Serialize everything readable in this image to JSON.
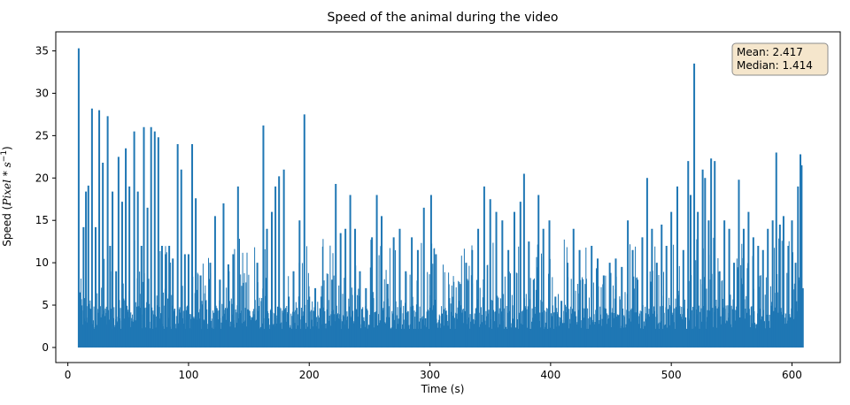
{
  "chart_data": {
    "type": "line",
    "title": "Speed of the animal during the video",
    "xlabel": "Time (s)",
    "ylabel_prefix": "Speed (",
    "ylabel_unit": "Pixel * s",
    "ylabel_exponent": "−1",
    "ylabel_suffix": ")",
    "xlim": [
      -10,
      640
    ],
    "ylim": [
      -1.78,
      37.25
    ],
    "xticks": [
      0,
      100,
      200,
      300,
      400,
      500,
      600
    ],
    "yticks": [
      0,
      5,
      10,
      15,
      20,
      25,
      30,
      35
    ],
    "grid": false,
    "color": "#1f77b4",
    "stats_box": {
      "mean_label": "Mean: 2.417",
      "median_label": "Median: 1.414",
      "placement": "top-right",
      "background": "#f5e6cc"
    },
    "x_range": [
      9,
      609
    ],
    "baseline": 0,
    "peaks": [
      {
        "x": 9,
        "y": 35.3
      },
      {
        "x": 10,
        "y": 6.5
      },
      {
        "x": 13,
        "y": 14.2
      },
      {
        "x": 15,
        "y": 18.4
      },
      {
        "x": 17,
        "y": 19.1
      },
      {
        "x": 20,
        "y": 28.2
      },
      {
        "x": 23,
        "y": 14.2
      },
      {
        "x": 26,
        "y": 28.0
      },
      {
        "x": 29,
        "y": 21.8
      },
      {
        "x": 33,
        "y": 27.3
      },
      {
        "x": 35,
        "y": 12.0
      },
      {
        "x": 37,
        "y": 18.4
      },
      {
        "x": 40,
        "y": 9.0
      },
      {
        "x": 42,
        "y": 22.5
      },
      {
        "x": 45,
        "y": 17.2
      },
      {
        "x": 48,
        "y": 23.5
      },
      {
        "x": 51,
        "y": 19.0
      },
      {
        "x": 55,
        "y": 25.5
      },
      {
        "x": 58,
        "y": 18.4
      },
      {
        "x": 61,
        "y": 12.0
      },
      {
        "x": 63,
        "y": 26.0
      },
      {
        "x": 66,
        "y": 16.5
      },
      {
        "x": 69,
        "y": 26.0
      },
      {
        "x": 72,
        "y": 25.5
      },
      {
        "x": 75,
        "y": 24.8
      },
      {
        "x": 78,
        "y": 12.0
      },
      {
        "x": 81,
        "y": 11.0
      },
      {
        "x": 84,
        "y": 12.0
      },
      {
        "x": 87,
        "y": 10.5
      },
      {
        "x": 91,
        "y": 24.0
      },
      {
        "x": 94,
        "y": 21.0
      },
      {
        "x": 97,
        "y": 11.0
      },
      {
        "x": 100,
        "y": 11.0
      },
      {
        "x": 103,
        "y": 24.0
      },
      {
        "x": 106,
        "y": 17.6
      },
      {
        "x": 110,
        "y": 8.5
      },
      {
        "x": 114,
        "y": 5.5
      },
      {
        "x": 118,
        "y": 10.0
      },
      {
        "x": 122,
        "y": 15.5
      },
      {
        "x": 126,
        "y": 8.0
      },
      {
        "x": 129,
        "y": 17.0
      },
      {
        "x": 133,
        "y": 9.8
      },
      {
        "x": 137,
        "y": 11.0
      },
      {
        "x": 141,
        "y": 19.0
      },
      {
        "x": 145,
        "y": 2.5
      },
      {
        "x": 149,
        "y": 4.5
      },
      {
        "x": 153,
        "y": 3.5
      },
      {
        "x": 157,
        "y": 10.0
      },
      {
        "x": 162,
        "y": 26.2
      },
      {
        "x": 165,
        "y": 14.0
      },
      {
        "x": 169,
        "y": 16.0
      },
      {
        "x": 172,
        "y": 19.0
      },
      {
        "x": 175,
        "y": 20.2
      },
      {
        "x": 179,
        "y": 21.0
      },
      {
        "x": 183,
        "y": 6.0
      },
      {
        "x": 187,
        "y": 9.0
      },
      {
        "x": 192,
        "y": 15.0
      },
      {
        "x": 196,
        "y": 27.5
      },
      {
        "x": 200,
        "y": 6.0
      },
      {
        "x": 205,
        "y": 7.0
      },
      {
        "x": 210,
        "y": 6.0
      },
      {
        "x": 215,
        "y": 4.5
      },
      {
        "x": 219,
        "y": 8.0
      },
      {
        "x": 222,
        "y": 19.3
      },
      {
        "x": 226,
        "y": 13.5
      },
      {
        "x": 230,
        "y": 14.0
      },
      {
        "x": 234,
        "y": 18.0
      },
      {
        "x": 238,
        "y": 14.0
      },
      {
        "x": 242,
        "y": 9.0
      },
      {
        "x": 247,
        "y": 7.0
      },
      {
        "x": 252,
        "y": 13.0
      },
      {
        "x": 256,
        "y": 18.0
      },
      {
        "x": 260,
        "y": 15.5
      },
      {
        "x": 265,
        "y": 7.5
      },
      {
        "x": 270,
        "y": 13.0
      },
      {
        "x": 275,
        "y": 14.0
      },
      {
        "x": 280,
        "y": 9.0
      },
      {
        "x": 285,
        "y": 13.0
      },
      {
        "x": 290,
        "y": 11.5
      },
      {
        "x": 295,
        "y": 16.5
      },
      {
        "x": 301,
        "y": 18.0
      },
      {
        "x": 305,
        "y": 11.0
      },
      {
        "x": 310,
        "y": 4.0
      },
      {
        "x": 315,
        "y": 2.5
      },
      {
        "x": 320,
        "y": 3.5
      },
      {
        "x": 325,
        "y": 7.5
      },
      {
        "x": 330,
        "y": 10.0
      },
      {
        "x": 335,
        "y": 11.5
      },
      {
        "x": 340,
        "y": 14.0
      },
      {
        "x": 345,
        "y": 19.0
      },
      {
        "x": 350,
        "y": 17.5
      },
      {
        "x": 355,
        "y": 16.0
      },
      {
        "x": 360,
        "y": 15.0
      },
      {
        "x": 365,
        "y": 11.5
      },
      {
        "x": 370,
        "y": 16.0
      },
      {
        "x": 375,
        "y": 17.2
      },
      {
        "x": 378,
        "y": 20.5
      },
      {
        "x": 382,
        "y": 12.5
      },
      {
        "x": 386,
        "y": 8.0
      },
      {
        "x": 390,
        "y": 18.0
      },
      {
        "x": 394,
        "y": 14.0
      },
      {
        "x": 399,
        "y": 15.0
      },
      {
        "x": 404,
        "y": 6.0
      },
      {
        "x": 409,
        "y": 5.5
      },
      {
        "x": 414,
        "y": 10.0
      },
      {
        "x": 419,
        "y": 14.0
      },
      {
        "x": 424,
        "y": 11.5
      },
      {
        "x": 429,
        "y": 7.5
      },
      {
        "x": 434,
        "y": 12.0
      },
      {
        "x": 439,
        "y": 10.5
      },
      {
        "x": 444,
        "y": 8.5
      },
      {
        "x": 449,
        "y": 10.0
      },
      {
        "x": 454,
        "y": 10.5
      },
      {
        "x": 459,
        "y": 9.5
      },
      {
        "x": 464,
        "y": 15.0
      },
      {
        "x": 468,
        "y": 11.5
      },
      {
        "x": 472,
        "y": 8.0
      },
      {
        "x": 476,
        "y": 13.0
      },
      {
        "x": 480,
        "y": 20.0
      },
      {
        "x": 484,
        "y": 14.0
      },
      {
        "x": 488,
        "y": 10.0
      },
      {
        "x": 492,
        "y": 14.5
      },
      {
        "x": 496,
        "y": 12.0
      },
      {
        "x": 500,
        "y": 16.0
      },
      {
        "x": 505,
        "y": 19.0
      },
      {
        "x": 510,
        "y": 11.5
      },
      {
        "x": 514,
        "y": 22.0
      },
      {
        "x": 516,
        "y": 18.0
      },
      {
        "x": 519,
        "y": 33.5
      },
      {
        "x": 522,
        "y": 16.0
      },
      {
        "x": 526,
        "y": 21.0
      },
      {
        "x": 528,
        "y": 20.0
      },
      {
        "x": 531,
        "y": 15.0
      },
      {
        "x": 533,
        "y": 22.3
      },
      {
        "x": 536,
        "y": 22.0
      },
      {
        "x": 540,
        "y": 9.0
      },
      {
        "x": 544,
        "y": 15.0
      },
      {
        "x": 548,
        "y": 14.0
      },
      {
        "x": 552,
        "y": 10.0
      },
      {
        "x": 556,
        "y": 19.8
      },
      {
        "x": 560,
        "y": 14.0
      },
      {
        "x": 564,
        "y": 16.0
      },
      {
        "x": 568,
        "y": 13.0
      },
      {
        "x": 572,
        "y": 12.0
      },
      {
        "x": 576,
        "y": 11.5
      },
      {
        "x": 580,
        "y": 14.0
      },
      {
        "x": 584,
        "y": 15.0
      },
      {
        "x": 587,
        "y": 23.0
      },
      {
        "x": 590,
        "y": 14.5
      },
      {
        "x": 593,
        "y": 15.5
      },
      {
        "x": 597,
        "y": 12.0
      },
      {
        "x": 600,
        "y": 15.0
      },
      {
        "x": 603,
        "y": 10.0
      },
      {
        "x": 605,
        "y": 19.0
      },
      {
        "x": 607,
        "y": 22.8
      },
      {
        "x": 608,
        "y": 21.5
      },
      {
        "x": 609,
        "y": 7.0
      }
    ]
  }
}
